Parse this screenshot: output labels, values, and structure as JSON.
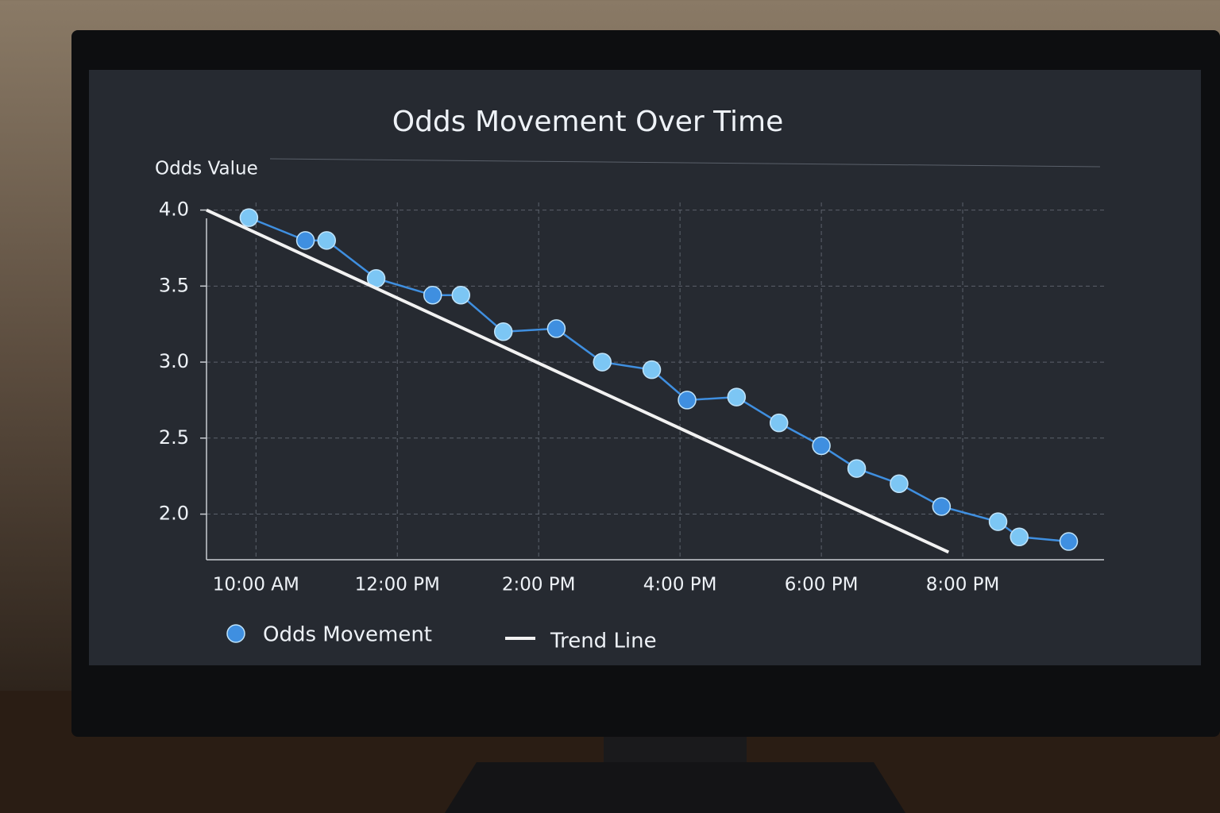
{
  "chart_data": {
    "type": "line",
    "title": "Odds Movement Over Time",
    "y_label": "Odds Value",
    "xlim": [
      9.3,
      22
    ],
    "xticks": [
      {
        "value": 10,
        "label": "10:00 AM"
      },
      {
        "value": 12,
        "label": "12:00 PM"
      },
      {
        "value": 14,
        "label": "2:00 PM"
      },
      {
        "value": 16,
        "label": "4:00 PM"
      },
      {
        "value": 18,
        "label": "6:00 PM"
      },
      {
        "value": 20,
        "label": "8:00 PM"
      }
    ],
    "ylim": [
      1.7,
      4.05
    ],
    "yticks": [
      {
        "value": 4,
        "label": "4.0"
      },
      {
        "value": 3.5,
        "label": "3.5"
      },
      {
        "value": 3,
        "label": "3.0"
      },
      {
        "value": 2.5,
        "label": "2.5"
      },
      {
        "value": 2,
        "label": "2.0"
      }
    ],
    "grid": true,
    "legend": "bottom-left",
    "series": [
      {
        "name": "Odds Movement",
        "color": "#3f8fe0",
        "marker": true,
        "x": [
          9.9,
          10.7,
          11.0,
          11.7,
          12.5,
          12.9,
          13.5,
          14.25,
          14.9,
          15.6,
          16.1,
          16.8,
          17.4,
          18.0,
          18.5,
          19.1,
          19.7,
          20.5,
          20.8,
          21.5
        ],
        "values": [
          3.95,
          3.8,
          3.8,
          3.55,
          3.44,
          3.44,
          3.2,
          3.22,
          3.0,
          2.95,
          2.75,
          2.77,
          2.6,
          2.45,
          2.3,
          2.2,
          2.05,
          1.95,
          1.85,
          1.82
        ]
      },
      {
        "name": "Trend Line",
        "color": "#f2f2f2",
        "marker": false,
        "x": [
          9.3,
          19.8
        ],
        "values": [
          4.0,
          1.75
        ]
      }
    ]
  }
}
